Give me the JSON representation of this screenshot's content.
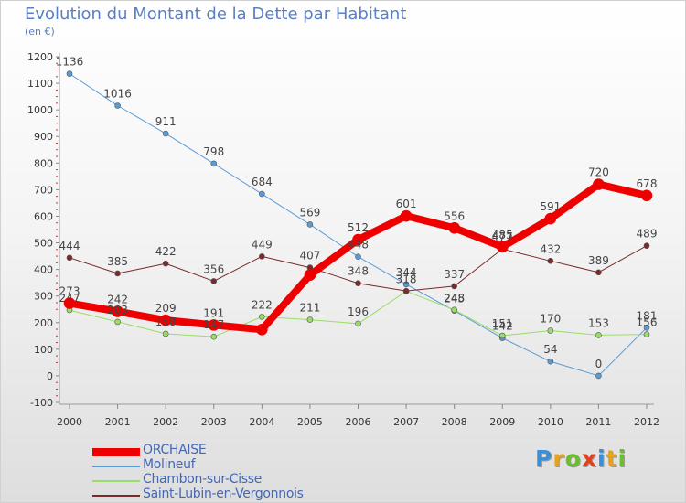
{
  "header": {
    "title": "Evolution du Montant de la Dette par Habitant",
    "unit": "(en €)"
  },
  "logo": {
    "text": "Proxiti",
    "colors": [
      "#3a8fd6",
      "#e8a21a",
      "#6cbf2a",
      "#e0431c",
      "#3a8fd6",
      "#e8a21a",
      "#6cbf2a"
    ]
  },
  "chart_data": {
    "type": "line",
    "title": "Evolution du Montant de la Dette par Habitant",
    "unit": "(en €)",
    "x": [
      "2000",
      "2001",
      "2002",
      "2003",
      "2004",
      "2005",
      "2006",
      "2007",
      "2008",
      "2009",
      "2010",
      "2011",
      "2012"
    ],
    "ylim": [
      -100,
      1200
    ],
    "yticks": [
      "-100",
      "0",
      "100",
      "200",
      "300",
      "400",
      "500",
      "600",
      "700",
      "800",
      "900",
      "1000",
      "1100",
      "1200"
    ],
    "grid": false,
    "legend_position": "bottom-left",
    "series": [
      {
        "name": "ORCHAISE",
        "color": "#ee0000",
        "width": 8,
        "values": [
          273,
          242,
          209,
          191,
          174,
          379,
          512,
          601,
          556,
          485,
          591,
          720,
          678
        ],
        "labels": [
          "273",
          "242",
          "209",
          "191",
          "",
          "",
          "512",
          "601",
          "556",
          "485",
          "591",
          "720",
          "678"
        ]
      },
      {
        "name": "Molineuf",
        "color": "#5b9bd5",
        "width": 1,
        "values": [
          1136,
          1016,
          911,
          798,
          684,
          569,
          448,
          344,
          245,
          142,
          54,
          0,
          181
        ],
        "labels": [
          "1136",
          "1016",
          "911",
          "798",
          "684",
          "569",
          "448",
          "344",
          "245",
          "142",
          "54",
          "0",
          "181"
        ]
      },
      {
        "name": "Chambon-sur-Cisse",
        "color": "#99dd66",
        "width": 1,
        "values": [
          247,
          203,
          158,
          147,
          222,
          211,
          196,
          318,
          248,
          151,
          170,
          153,
          156
        ],
        "labels": [
          "247",
          "203",
          "158",
          "147",
          "222",
          "211",
          "196",
          "318",
          "248",
          "151",
          "170",
          "153",
          "156"
        ]
      },
      {
        "name": "Saint-Lubin-en-Vergonnois",
        "color": "#7a2a2a",
        "width": 1,
        "values": [
          444,
          385,
          422,
          356,
          449,
          407,
          348,
          319,
          337,
          477,
          432,
          389,
          489
        ],
        "labels": [
          "444",
          "385",
          "422",
          "356",
          "449",
          "407",
          "348",
          "",
          "337",
          "477",
          "432",
          "389",
          "489"
        ]
      }
    ]
  }
}
